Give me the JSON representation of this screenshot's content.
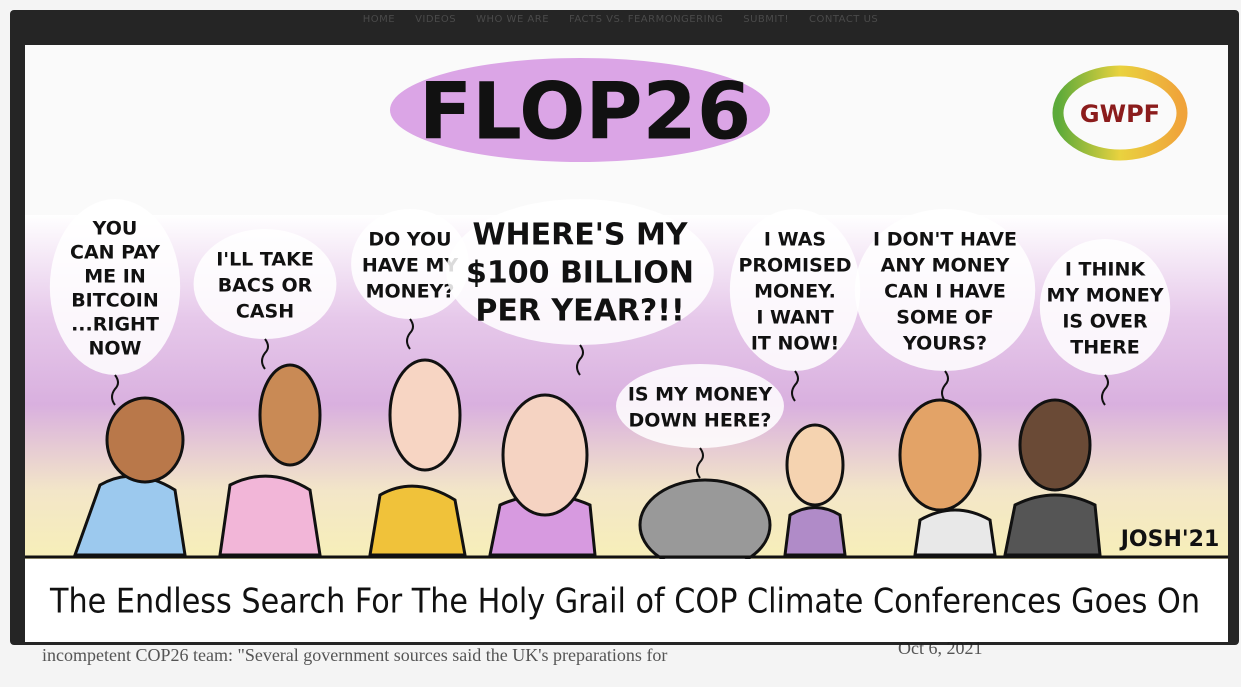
{
  "nav": {
    "items": [
      "HOME",
      "VIDEOS",
      "WHO WE ARE",
      "FACTS VS. FEARMONGERING",
      "SUBMIT!",
      "CONTACT US"
    ]
  },
  "cartoon": {
    "title": "FLOP26",
    "logo": "GWPF",
    "bubbles": [
      {
        "lines": [
          "YOU",
          "CAN PAY",
          "ME IN",
          "BITCOIN",
          "...RIGHT",
          "NOW"
        ]
      },
      {
        "lines": [
          "I'LL TAKE",
          "BACS OR",
          "CASH"
        ]
      },
      {
        "lines": [
          "DO YOU",
          "HAVE MY",
          "MONEY?"
        ]
      },
      {
        "lines": [
          "WHERE'S MY",
          "$100 BILLION",
          "PER YEAR?!!"
        ]
      },
      {
        "lines": [
          "IS MY MONEY",
          "DOWN HERE?"
        ]
      },
      {
        "lines": [
          "I WAS",
          "PROMISED",
          "MONEY.",
          "I WANT",
          "IT NOW!"
        ]
      },
      {
        "lines": [
          "I DON'T HAVE",
          "ANY MONEY",
          "CAN I HAVE",
          "SOME OF",
          "YOURS?"
        ]
      },
      {
        "lines": [
          "I THINK",
          "MY MONEY",
          "IS OVER",
          "THERE"
        ]
      }
    ],
    "signature": "JOSH'21",
    "caption": "The Endless Search For The Holy Grail of COP Climate Conferences Goes On"
  },
  "background": {
    "text": "incompetent COP26 team: \"Several government sources said the UK's preparations for",
    "date": "Oct 6, 2021"
  }
}
